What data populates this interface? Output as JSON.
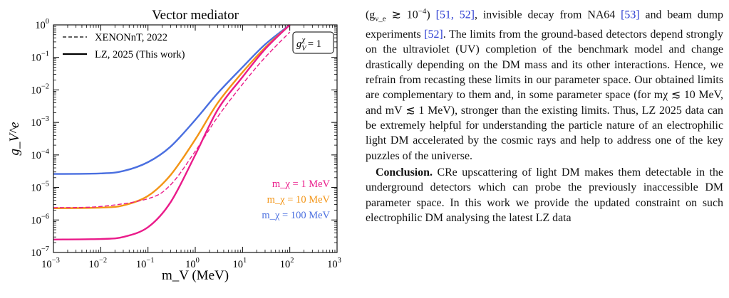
{
  "chart_data": {
    "type": "line",
    "title": "Vector mediator",
    "xlabel": "m_V (MeV)",
    "ylabel": "g_V^e",
    "x_scale": "log",
    "y_scale": "log",
    "xlim": [
      0.001,
      1000
    ],
    "ylim": [
      1e-07,
      1
    ],
    "x_ticks": [
      "10^-3",
      "10^-2",
      "10^-1",
      "10^0",
      "10^1",
      "10^2",
      "10^3"
    ],
    "y_ticks": [
      "10^-7",
      "10^-6",
      "10^-5",
      "10^-4",
      "10^-3",
      "10^-2",
      "10^-1",
      "10^0"
    ],
    "legend": {
      "placement": "top-left",
      "entries": [
        {
          "label": "XENONnT, 2022",
          "style": "dashed"
        },
        {
          "label": "LZ, 2025 (This work)",
          "style": "solid"
        }
      ]
    },
    "annotation_box": "g_V^χ = 1",
    "series": [
      {
        "name": "m_χ = 100 MeV",
        "color": "#4a6fe0",
        "style": "solid",
        "x": [
          0.001,
          0.01,
          0.03,
          0.1,
          0.3,
          1,
          3,
          10,
          30,
          100
        ],
        "y": [
          2.6e-05,
          2.7e-05,
          3.2e-05,
          6e-05,
          0.00018,
          0.0012,
          0.008,
          0.05,
          0.25,
          1.0
        ]
      },
      {
        "name": "m_χ = 10 MeV",
        "color": "#f39415",
        "style": "solid",
        "x": [
          0.001,
          0.01,
          0.03,
          0.1,
          0.3,
          1,
          3,
          10,
          30,
          100
        ],
        "y": [
          2.3e-06,
          2.4e-06,
          2.8e-06,
          5.5e-06,
          2.4e-05,
          0.0003,
          0.004,
          0.035,
          0.2,
          1.0
        ]
      },
      {
        "name": "m_χ = 1 MeV",
        "color": "#ea1b8a",
        "style": "solid",
        "x": [
          0.001,
          0.01,
          0.03,
          0.1,
          0.3,
          1,
          3,
          10,
          30,
          100
        ],
        "y": [
          2.5e-07,
          2.6e-07,
          3e-07,
          6e-07,
          3.5e-06,
          0.0001,
          0.0025,
          0.025,
          0.18,
          1.0
        ]
      },
      {
        "name": "m_χ = 1 MeV",
        "color": "#ea1b8a",
        "style": "dashed",
        "x": [
          0.001,
          0.01,
          0.1,
          0.3,
          1,
          3,
          10,
          30,
          100
        ],
        "y": [
          2.4e-06,
          2.6e-06,
          4.5e-06,
          1.2e-05,
          0.00013,
          0.0015,
          0.015,
          0.1,
          0.6
        ]
      }
    ],
    "series_labels": [
      {
        "text": "m_χ = 1 MeV",
        "color": "#ea1b8a"
      },
      {
        "text": "m_χ = 10 MeV",
        "color": "#f39415"
      },
      {
        "text": "m_χ = 100 MeV",
        "color": "#4a6fe0"
      }
    ]
  },
  "text": {
    "p1": [
      {
        "t": "(g"
      },
      {
        "t": "ν_e"
      },
      {
        "t": " ≳ 10"
      },
      {
        "t": "−4"
      },
      {
        "t": ") "
      },
      {
        "t": "[51, 52]",
        "cite": true
      },
      {
        "t": ", invisible decay from NA64 "
      },
      {
        "t": "[53]",
        "cite": true
      },
      {
        "t": " and beam dump experiments "
      },
      {
        "t": "[52]",
        "cite": true
      },
      {
        "t": ". The limits from the ground-based detectors depend strongly on the ultraviolet (UV) completion of the benchmark model and change drastically depending on the DM mass and its other interactions. Hence, we refrain from recasting these limits in our parameter space. Our obtained limits are complementary to them and, in some parameter space (for m"
      },
      {
        "t": "χ"
      },
      {
        "t": " ≲ 10 MeV, and m"
      },
      {
        "t": "V"
      },
      {
        "t": " ≲ 1 MeV), stronger than the existing limits. Thus, LZ 2025 data can be extremely helpful for understanding the particle nature of an electrophilic light DM accelerated by the cosmic rays and help to address one of the key puzzles of the universe."
      }
    ],
    "p2_heading": "Conclusion.",
    "p2_body": " CRe upscattering of light DM makes them detectable in the underground detectors which can probe the previously inaccessible DM parameter space. In this work we provide the updated constraint on such electrophilic DM analysing the latest LZ data"
  }
}
